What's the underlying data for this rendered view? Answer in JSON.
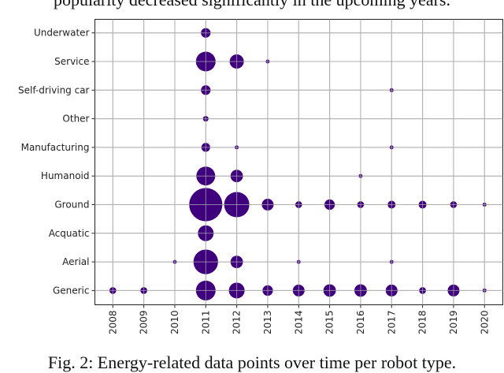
{
  "top_text": "popularity decreased significantly in the upcoming years.",
  "caption": "Fig. 2: Energy-related data points over time per robot type.",
  "chart_data": {
    "type": "scatter",
    "subtype": "bubble",
    "x": [
      "2008",
      "2009",
      "2010",
      "2011",
      "2012",
      "2013",
      "2014",
      "2015",
      "2016",
      "2017",
      "2018",
      "2019",
      "2020"
    ],
    "categories": [
      "Generic",
      "Aerial",
      "Acquatic",
      "Ground",
      "Humanoid",
      "Manufacturing",
      "Other",
      "Self-driving car",
      "Service",
      "Underwater"
    ],
    "grid": true,
    "marker_color": "#3f007d",
    "points": [
      {
        "type": "Underwater",
        "year": "2011",
        "count": 6
      },
      {
        "type": "Service",
        "year": "2011",
        "count": 25
      },
      {
        "type": "Service",
        "year": "2012",
        "count": 13
      },
      {
        "type": "Service",
        "year": "2013",
        "count": 1
      },
      {
        "type": "Self-driving car",
        "year": "2011",
        "count": 6
      },
      {
        "type": "Self-driving car",
        "year": "2017",
        "count": 1
      },
      {
        "type": "Other",
        "year": "2011",
        "count": 2
      },
      {
        "type": "Manufacturing",
        "year": "2011",
        "count": 5
      },
      {
        "type": "Manufacturing",
        "year": "2012",
        "count": 1
      },
      {
        "type": "Manufacturing",
        "year": "2017",
        "count": 1
      },
      {
        "type": "Humanoid",
        "year": "2011",
        "count": 23
      },
      {
        "type": "Humanoid",
        "year": "2012",
        "count": 10
      },
      {
        "type": "Humanoid",
        "year": "2016",
        "count": 1
      },
      {
        "type": "Ground",
        "year": "2011",
        "count": 71
      },
      {
        "type": "Ground",
        "year": "2012",
        "count": 41
      },
      {
        "type": "Ground",
        "year": "2013",
        "count": 9
      },
      {
        "type": "Ground",
        "year": "2014",
        "count": 3
      },
      {
        "type": "Ground",
        "year": "2015",
        "count": 7
      },
      {
        "type": "Ground",
        "year": "2016",
        "count": 3
      },
      {
        "type": "Ground",
        "year": "2017",
        "count": 4
      },
      {
        "type": "Ground",
        "year": "2018",
        "count": 4
      },
      {
        "type": "Ground",
        "year": "2019",
        "count": 3
      },
      {
        "type": "Ground",
        "year": "2020",
        "count": 1
      },
      {
        "type": "Acquatic",
        "year": "2011",
        "count": 16
      },
      {
        "type": "Aerial",
        "year": "2010",
        "count": 1
      },
      {
        "type": "Aerial",
        "year": "2011",
        "count": 39
      },
      {
        "type": "Aerial",
        "year": "2012",
        "count": 10
      },
      {
        "type": "Aerial",
        "year": "2014",
        "count": 1
      },
      {
        "type": "Aerial",
        "year": "2017",
        "count": 1
      },
      {
        "type": "Generic",
        "year": "2008",
        "count": 3
      },
      {
        "type": "Generic",
        "year": "2009",
        "count": 3
      },
      {
        "type": "Generic",
        "year": "2011",
        "count": 25
      },
      {
        "type": "Generic",
        "year": "2012",
        "count": 16
      },
      {
        "type": "Generic",
        "year": "2013",
        "count": 7
      },
      {
        "type": "Generic",
        "year": "2014",
        "count": 9
      },
      {
        "type": "Generic",
        "year": "2015",
        "count": 10
      },
      {
        "type": "Generic",
        "year": "2016",
        "count": 10
      },
      {
        "type": "Generic",
        "year": "2017",
        "count": 9
      },
      {
        "type": "Generic",
        "year": "2018",
        "count": 3
      },
      {
        "type": "Generic",
        "year": "2019",
        "count": 9
      },
      {
        "type": "Generic",
        "year": "2020",
        "count": 1
      }
    ]
  }
}
